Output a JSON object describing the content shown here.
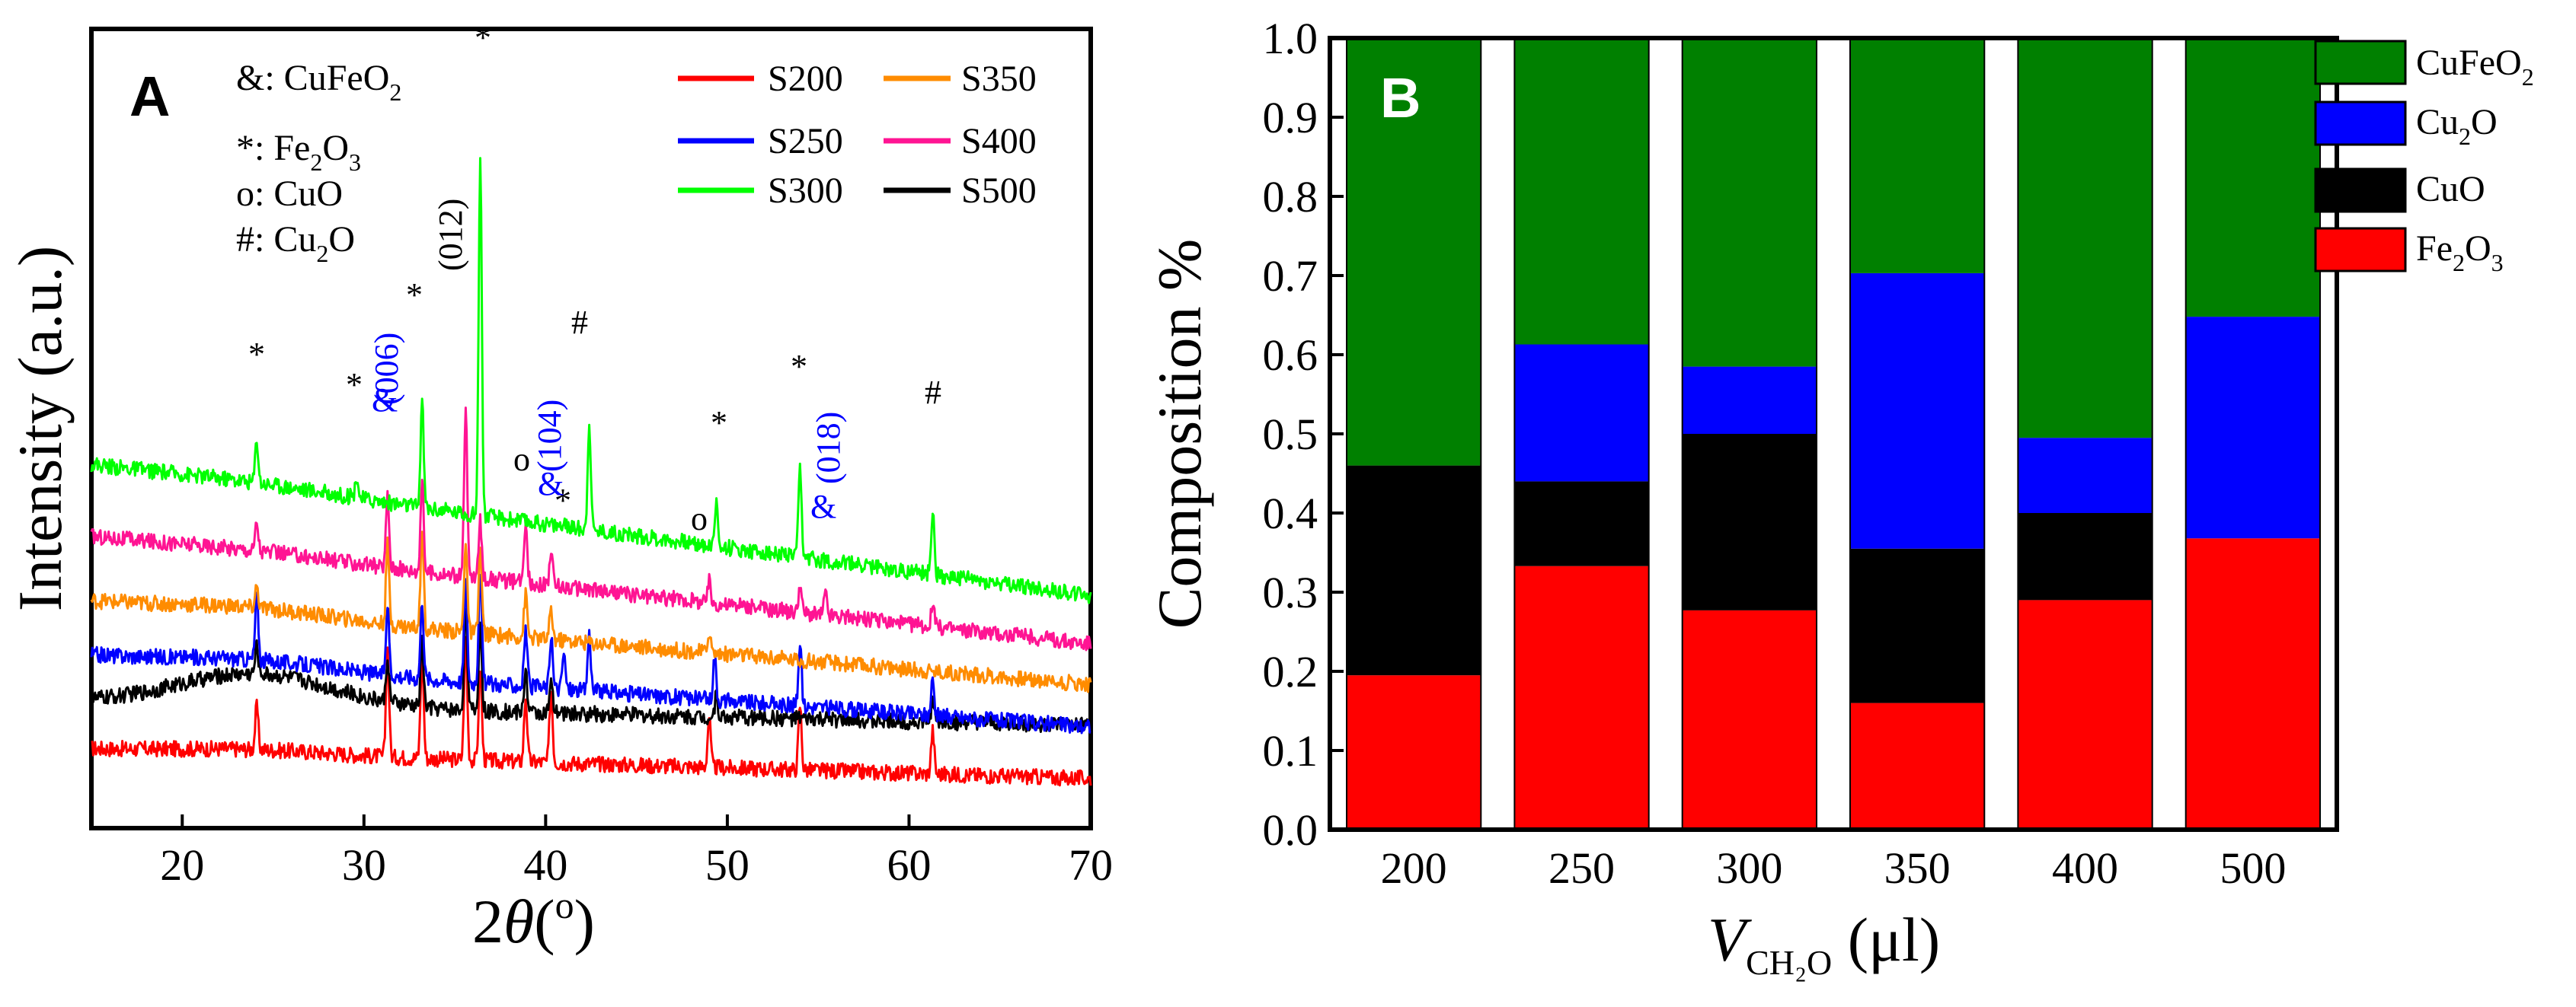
{
  "chart_data": [
    {
      "type": "line",
      "panel_label": "A",
      "xlabel": "2θ(o)",
      "ylabel": "Intensity (a.u.)",
      "xlim": [
        15,
        70
      ],
      "xticks": [
        20,
        30,
        40,
        50,
        60,
        70
      ],
      "series": [
        {
          "name": "S200",
          "color": "#ff0000",
          "baseline": 0.5,
          "slope": -0.0025,
          "hump": 0.06,
          "peaks": [
            [
              24.1,
              0.6
            ],
            [
              31.3,
              1.5
            ],
            [
              33.2,
              1.5
            ],
            [
              35.6,
              1.7
            ],
            [
              36.4,
              1.3
            ],
            [
              38.9,
              0.9
            ],
            [
              40.3,
              1.0
            ],
            [
              49.0,
              0.7
            ],
            [
              54.0,
              0.9
            ],
            [
              61.3,
              0.6
            ]
          ]
        },
        {
          "name": "S500",
          "color": "#000000",
          "baseline": 1.15,
          "slope": -0.002,
          "hump": 0.45,
          "peaks": [
            [
              24.1,
              0.4
            ],
            [
              31.3,
              0.6
            ],
            [
              33.2,
              0.9
            ],
            [
              35.6,
              1.5
            ],
            [
              36.4,
              1.2
            ],
            [
              38.9,
              0.6
            ],
            [
              40.3,
              0.4
            ],
            [
              49.4,
              0.3
            ],
            [
              61.3,
              0.3
            ]
          ]
        },
        {
          "name": "S250",
          "color": "#0000ff",
          "baseline": 1.8,
          "slope": -0.006,
          "hump": 0.1,
          "peaks": [
            [
              24.1,
              0.9
            ],
            [
              31.3,
              1.0
            ],
            [
              33.2,
              1.1
            ],
            [
              35.6,
              1.4
            ],
            [
              36.4,
              1.6
            ],
            [
              38.9,
              0.8
            ],
            [
              40.3,
              0.7
            ],
            [
              41.0,
              0.5
            ],
            [
              42.4,
              0.8
            ],
            [
              49.3,
              0.6
            ],
            [
              54.0,
              0.9
            ],
            [
              61.3,
              0.5
            ]
          ]
        },
        {
          "name": "S350",
          "color": "#ff8c00",
          "baseline": 2.55,
          "slope": -0.007,
          "hump": 0.1,
          "peaks": [
            [
              24.1,
              0.3
            ],
            [
              31.3,
              1.1
            ],
            [
              33.2,
              1.4
            ],
            [
              35.6,
              1.3
            ],
            [
              36.4,
              1.2
            ],
            [
              38.9,
              0.6
            ],
            [
              40.3,
              0.4
            ],
            [
              49.0,
              0.3
            ]
          ]
        },
        {
          "name": "S400",
          "color": "#ff1493",
          "baseline": 3.45,
          "slope": -0.009,
          "hump": 0.05,
          "peaks": [
            [
              24.1,
              0.4
            ],
            [
              31.3,
              1.0
            ],
            [
              33.2,
              1.3
            ],
            [
              35.6,
              2.3
            ],
            [
              36.4,
              0.8
            ],
            [
              38.9,
              0.9
            ],
            [
              40.3,
              0.5
            ],
            [
              49.0,
              0.3
            ],
            [
              54.0,
              0.4
            ],
            [
              55.4,
              0.3
            ],
            [
              61.3,
              0.3
            ]
          ]
        },
        {
          "name": "S300",
          "color": "#00ff00",
          "baseline": 4.45,
          "slope": -0.011,
          "hump": 0.05,
          "peaks": [
            [
              24.1,
              0.6
            ],
            [
              29.6,
              0.3
            ],
            [
              33.2,
              1.5
            ],
            [
              36.4,
              5.0
            ],
            [
              42.4,
              1.5
            ],
            [
              49.4,
              0.6
            ],
            [
              54.0,
              1.2
            ],
            [
              61.3,
              0.9
            ]
          ]
        }
      ],
      "legend": [
        "S200",
        "S350",
        "S250",
        "S400",
        "S300",
        "S500"
      ],
      "phase_key": [
        "&: CuFeO2",
        "*: Fe2O3",
        "o: CuO",
        "#: Cu2O"
      ],
      "annotations": [
        "*",
        "*",
        "*",
        "*",
        "*",
        "*",
        "*",
        "#",
        "#",
        "o",
        "o",
        "&",
        "&",
        "&",
        "(006)",
        "(104)",
        "(018)",
        "(012)"
      ]
    },
    {
      "type": "bar",
      "stacked": true,
      "panel_label": "B",
      "xlabel": "VCH2O (μl)",
      "ylabel": "Composition %",
      "ylim": [
        0,
        1.0
      ],
      "yticks": [
        "0.0",
        "0.1",
        "0.2",
        "0.3",
        "0.4",
        "0.5",
        "0.6",
        "0.7",
        "0.8",
        "0.9",
        "1.0"
      ],
      "categories": [
        "200",
        "250",
        "300",
        "350",
        "400",
        "500"
      ],
      "series": [
        {
          "name": "Fe2O3",
          "color": "#ff0000",
          "values": [
            0.195,
            0.333,
            0.277,
            0.16,
            0.29,
            0.368
          ]
        },
        {
          "name": "CuO",
          "color": "#000000",
          "values": [
            0.265,
            0.107,
            0.223,
            0.195,
            0.11,
            0.0
          ]
        },
        {
          "name": "Cu2O",
          "color": "#0000ff",
          "values": [
            0.0,
            0.173,
            0.085,
            0.348,
            0.095,
            0.28
          ]
        },
        {
          "name": "CuFeO2",
          "color": "#008000",
          "values": [
            0.54,
            0.387,
            0.415,
            0.297,
            0.505,
            0.352
          ]
        }
      ],
      "legend": [
        "CuFeO2",
        "Cu2O",
        "CuO",
        "Fe2O3"
      ]
    }
  ]
}
